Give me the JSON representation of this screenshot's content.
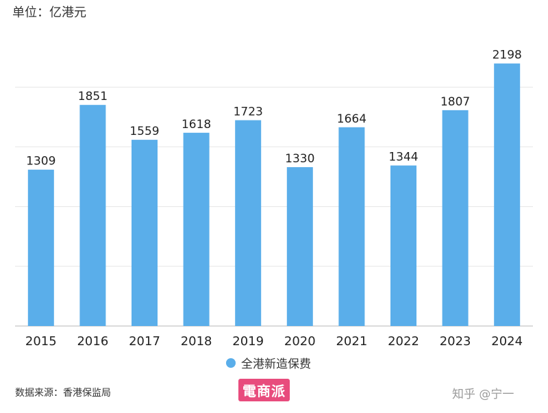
{
  "header": {
    "unit_label": "单位：亿港元"
  },
  "chart_data": {
    "type": "bar",
    "categories": [
      "2015",
      "2016",
      "2017",
      "2018",
      "2019",
      "2020",
      "2021",
      "2022",
      "2023",
      "2024"
    ],
    "series": [
      {
        "name": "全港新造保费",
        "values": [
          1309,
          1851,
          1559,
          1618,
          1723,
          1330,
          1664,
          1344,
          1807,
          2198
        ]
      }
    ],
    "ylim": [
      0,
      2500
    ],
    "grid": true,
    "data_labels": true,
    "legend_position": "bottom-center",
    "bar_color": "#5aaeea"
  },
  "legend": {
    "label": "全港新造保费"
  },
  "footer": {
    "source": "数据来源：香港保监局"
  },
  "watermarks": {
    "badge": "電商派",
    "zhihu": "知乎 @宁一"
  }
}
